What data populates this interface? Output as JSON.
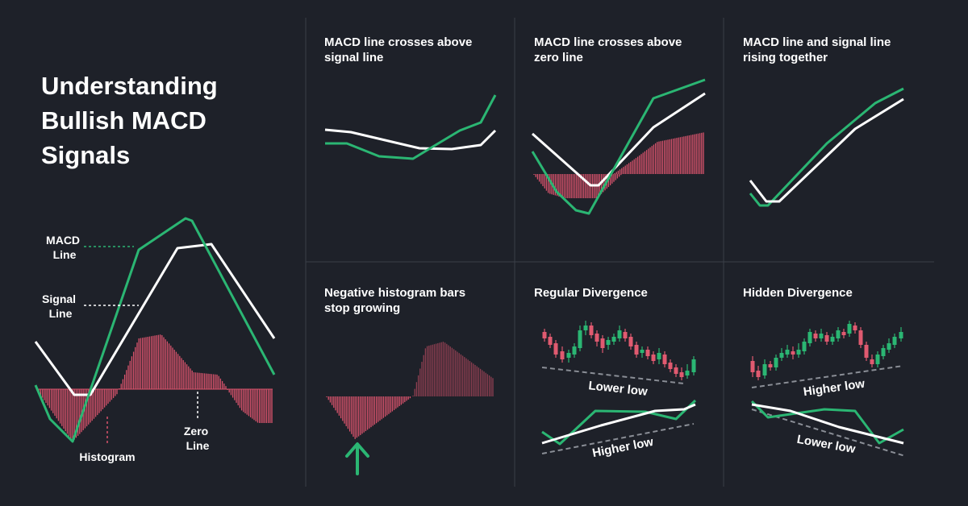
{
  "title": [
    "Understanding",
    "Bullish MACD",
    "Signals"
  ],
  "main_labels": {
    "macd": [
      "MACD",
      "Line"
    ],
    "signal": [
      "Signal",
      "Line"
    ],
    "histogram": "Histogram",
    "zero": [
      "Zero",
      "Line"
    ]
  },
  "panels": [
    {
      "id": "crosses-signal",
      "title": [
        "MACD line crosses above",
        "signal line"
      ]
    },
    {
      "id": "crosses-zero",
      "title": [
        "MACD line crosses above",
        "zero line"
      ]
    },
    {
      "id": "rising-together",
      "title": [
        "MACD line and signal line",
        "rising together"
      ]
    },
    {
      "id": "histogram-stop",
      "title": [
        "Negative histogram bars",
        "stop growing"
      ]
    },
    {
      "id": "regular-divergence",
      "title": [
        "Regular Divergence"
      ],
      "price_label": "Lower low",
      "macd_label": "Higher low"
    },
    {
      "id": "hidden-divergence",
      "title": [
        "Hidden Divergence"
      ],
      "price_label": "Higher low",
      "macd_label": "Lower low"
    }
  ],
  "colors": {
    "background": "#1e2129",
    "macd_line": "#2bb673",
    "signal_line": "#ffffff",
    "histogram": "#d9536c",
    "candle_up": "#2bb673",
    "candle_down": "#e05a70",
    "trend_dash": "#8a8e96",
    "arrow": "#2bb673"
  },
  "icons": {
    "arrow": "arrow-up-icon"
  }
}
